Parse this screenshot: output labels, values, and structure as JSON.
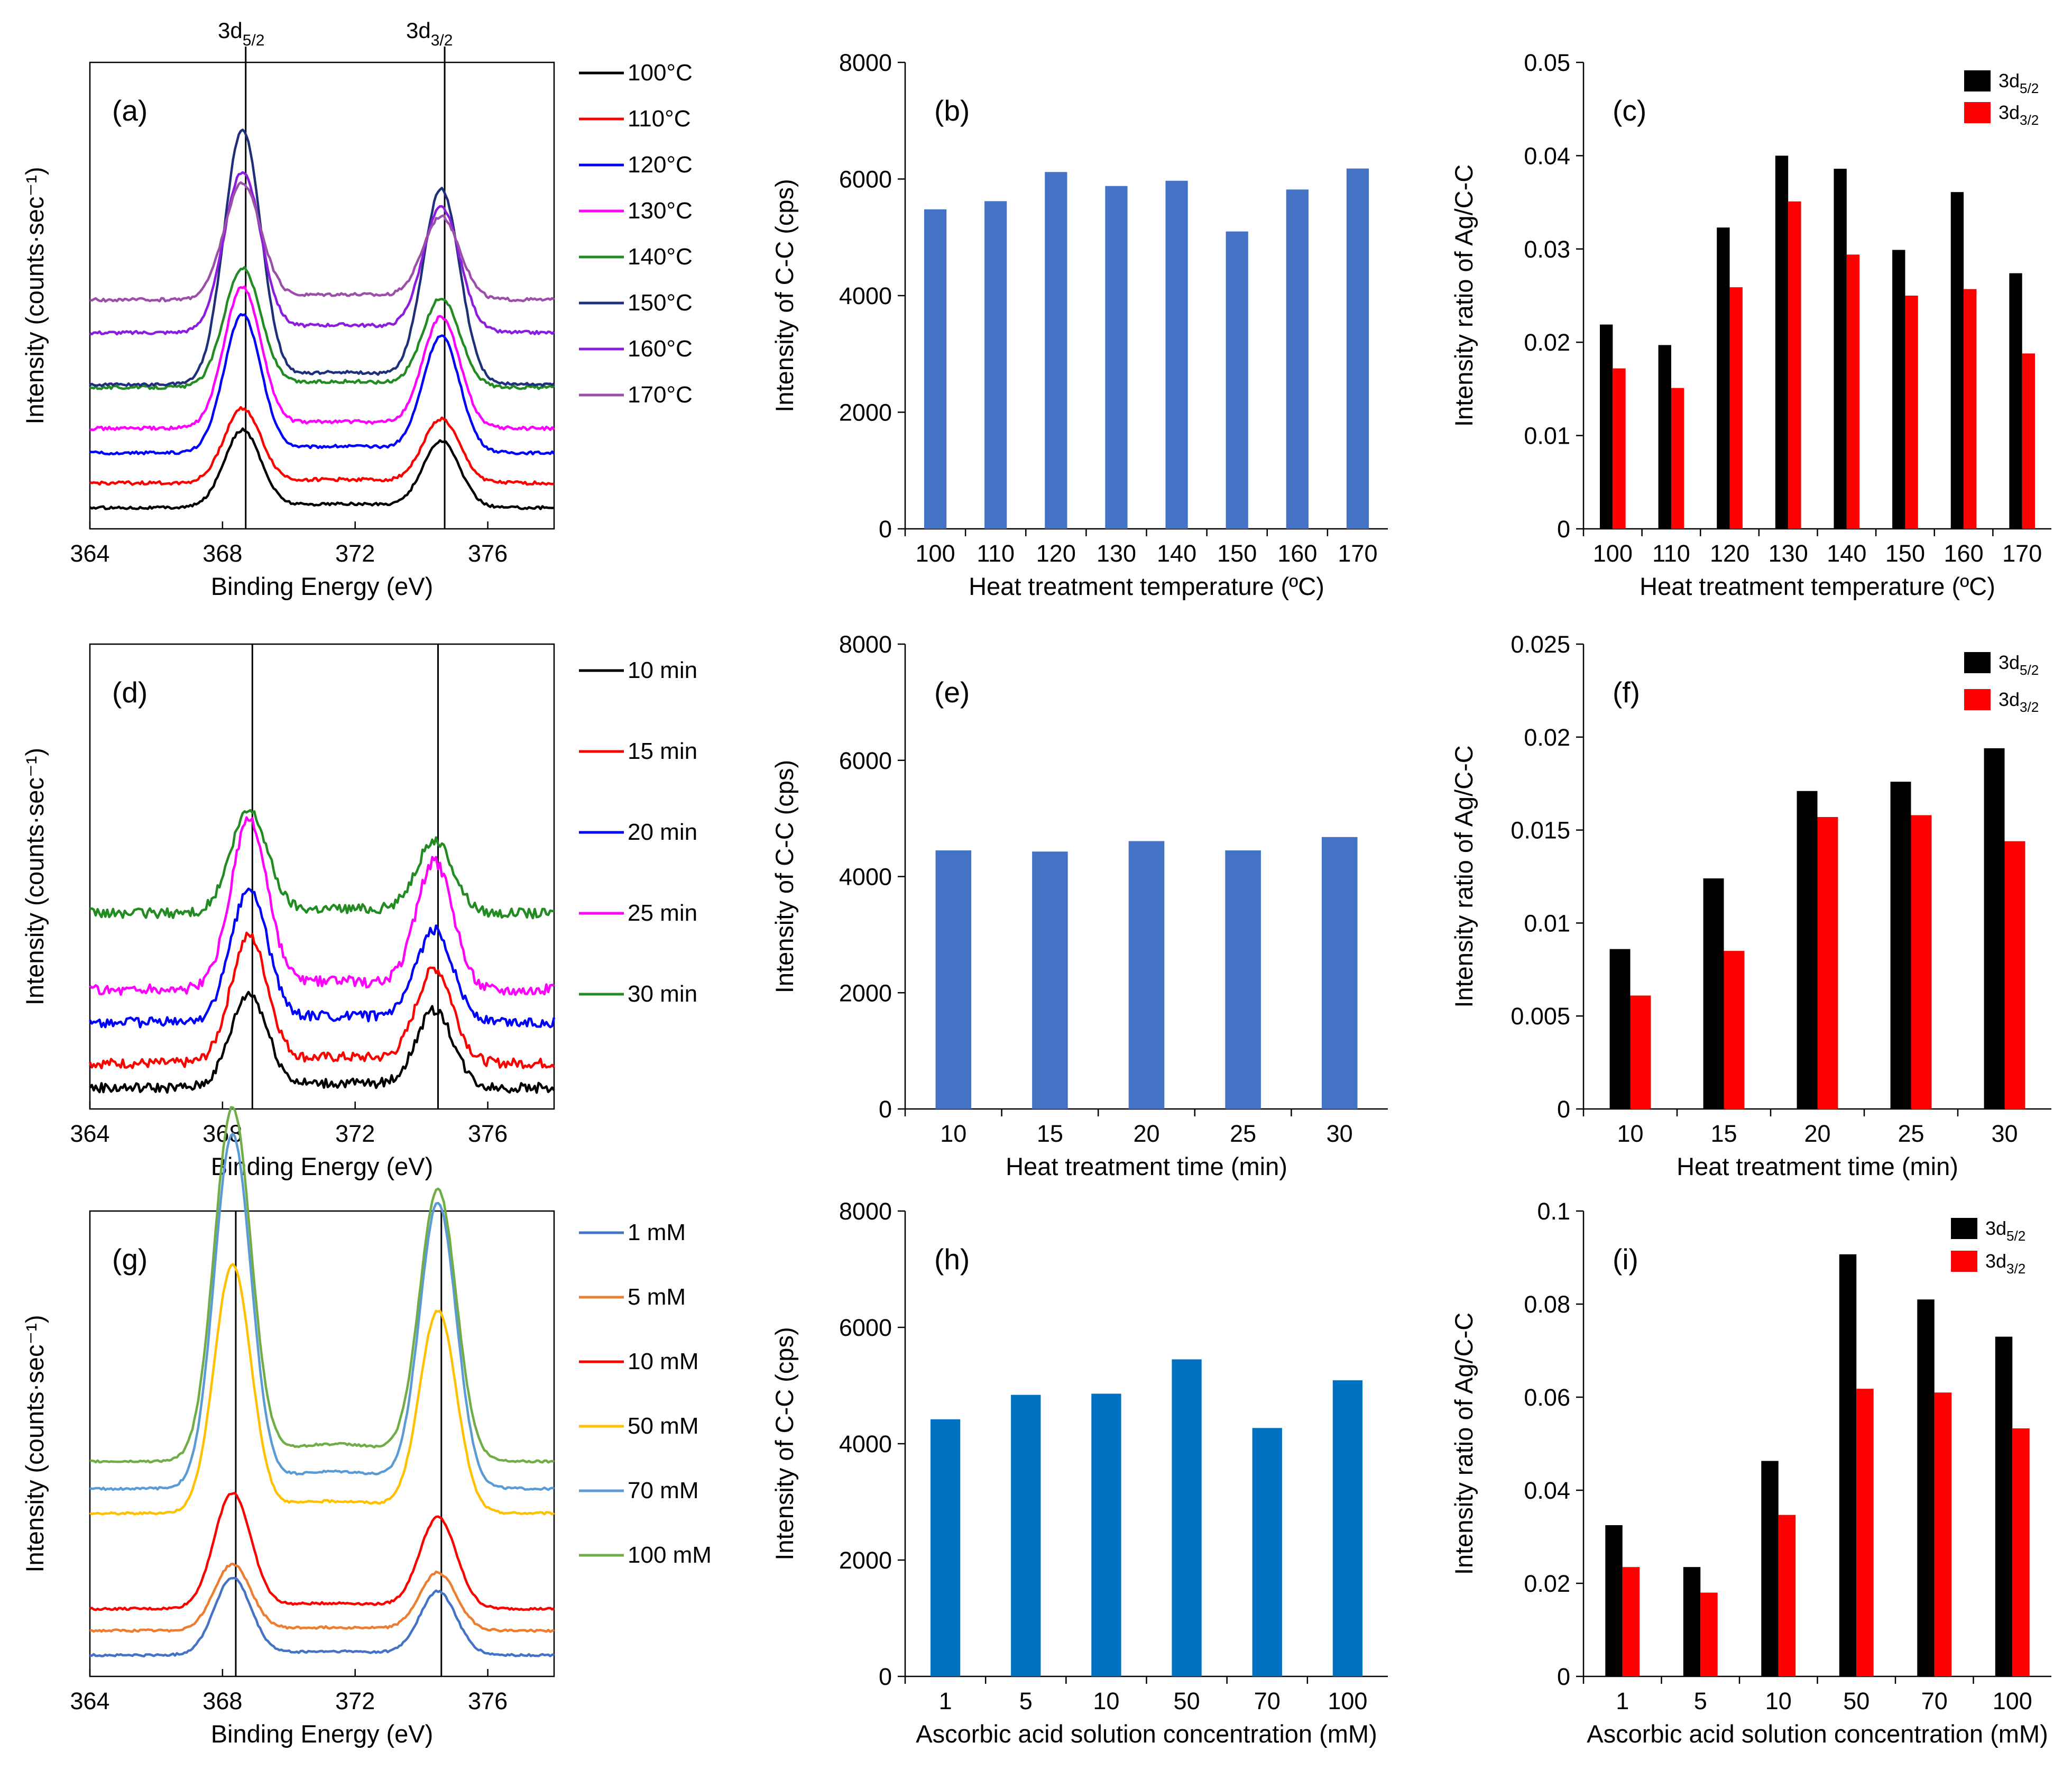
{
  "peak_labels": {
    "p1": "3d5/2",
    "p2": "3d3/2",
    "p1_main": "3d",
    "p1_sub": "5/2",
    "p2_main": "3d",
    "p2_sub": "3/2"
  },
  "chart_data": [
    {
      "id": "a",
      "panel_label": "(a)",
      "type": "line",
      "title": "",
      "xlabel": "Binding Energy (eV)",
      "ylabel": "Intensity (counts·sec⁻¹)",
      "xlim": [
        364,
        378
      ],
      "xticks": [
        364,
        368,
        372,
        376
      ],
      "peak_lines_eV": [
        368.7,
        374.7
      ],
      "legend": [
        "100°C",
        "110°C",
        "120°C",
        "130°C",
        "140°C",
        "150°C",
        "160°C",
        "170°C"
      ],
      "series": [
        {
          "name": "100°C",
          "color": "#000000",
          "offset": 0.0,
          "p1": 0.28,
          "p2": 0.24,
          "noise": 0.005
        },
        {
          "name": "110°C",
          "color": "#ff0000",
          "offset": 0.09,
          "p1": 0.27,
          "p2": 0.23,
          "noise": 0.006
        },
        {
          "name": "120°C",
          "color": "#0000ff",
          "offset": 0.2,
          "p1": 0.5,
          "p2": 0.42,
          "noise": 0.005
        },
        {
          "name": "130°C",
          "color": "#ff00ff",
          "offset": 0.29,
          "p1": 0.51,
          "p2": 0.4,
          "noise": 0.006
        },
        {
          "name": "140°C",
          "color": "#228b22",
          "offset": 0.44,
          "p1": 0.43,
          "p2": 0.32,
          "noise": 0.006
        },
        {
          "name": "150°C",
          "color": "#1f2f7a",
          "offset": 0.45,
          "p1": 0.92,
          "p2": 0.7,
          "noise": 0.005
        },
        {
          "name": "160°C",
          "color": "#8b1ce0",
          "offset": 0.64,
          "p1": 0.58,
          "p2": 0.45,
          "noise": 0.006
        },
        {
          "name": "170°C",
          "color": "#9b4fa8",
          "offset": 0.76,
          "p1": 0.42,
          "p2": 0.3,
          "noise": 0.006
        }
      ]
    },
    {
      "id": "b",
      "panel_label": "(b)",
      "type": "bar",
      "xlabel": "Heat treatment temperature (ºC)",
      "ylabel": "Intensity of C-C (cps)",
      "ylim": [
        0,
        8000
      ],
      "yticks": [
        "0",
        "2000",
        "4000",
        "6000",
        "8000"
      ],
      "categories": [
        "100",
        "110",
        "120",
        "130",
        "140",
        "150",
        "160",
        "170"
      ],
      "series": [
        {
          "name": "C-C",
          "color": "#4472c4",
          "values": [
            5480,
            5620,
            6120,
            5880,
            5970,
            5100,
            5820,
            6180
          ]
        }
      ]
    },
    {
      "id": "c",
      "panel_label": "(c)",
      "type": "bar",
      "xlabel": "Heat treatment temperature (ºC)",
      "ylabel": "Intensity ratio of Ag/C-C",
      "ylim": [
        0,
        0.05
      ],
      "yticks": [
        "0",
        "0.01",
        "0.02",
        "0.03",
        "0.04",
        "0.05"
      ],
      "categories": [
        "100",
        "110",
        "120",
        "130",
        "140",
        "150",
        "160",
        "170"
      ],
      "legend": [
        "3d5/2",
        "3d3/2"
      ],
      "series": [
        {
          "name": "3d5/2",
          "color": "#000000",
          "values": [
            0.0219,
            0.0197,
            0.0323,
            0.04,
            0.0386,
            0.0299,
            0.0361,
            0.0274
          ]
        },
        {
          "name": "3d3/2",
          "color": "#ff0000",
          "values": [
            0.0172,
            0.0151,
            0.0259,
            0.0351,
            0.0294,
            0.025,
            0.0257,
            0.0188
          ]
        }
      ]
    },
    {
      "id": "d",
      "panel_label": "(d)",
      "type": "line",
      "xlabel": "Binding Energy (eV)",
      "ylabel": "Intensity (counts·sec⁻¹)",
      "xlim": [
        364,
        378
      ],
      "xticks": [
        364,
        368,
        372,
        376
      ],
      "peak_lines_eV": [
        368.9,
        374.5
      ],
      "legend": [
        "10 min",
        "15 min",
        "20 min",
        "25 min",
        "30 min"
      ],
      "series": [
        {
          "name": "10 min",
          "color": "#000000",
          "offset": 0.0,
          "p1": 0.34,
          "p2": 0.28,
          "noise": 0.018
        },
        {
          "name": "15 min",
          "color": "#ff0000",
          "offset": 0.09,
          "p1": 0.46,
          "p2": 0.34,
          "noise": 0.018
        },
        {
          "name": "20 min",
          "color": "#0000ff",
          "offset": 0.24,
          "p1": 0.48,
          "p2": 0.33,
          "noise": 0.018
        },
        {
          "name": "25 min",
          "color": "#ff00ff",
          "offset": 0.36,
          "p1": 0.61,
          "p2": 0.46,
          "noise": 0.02
        },
        {
          "name": "30 min",
          "color": "#228b22",
          "offset": 0.64,
          "p1": 0.37,
          "p2": 0.26,
          "noise": 0.018
        }
      ]
    },
    {
      "id": "e",
      "panel_label": "(e)",
      "type": "bar",
      "xlabel": "Heat treatment time (min)",
      "ylabel": "Intensity of C-C (cps)",
      "ylim": [
        0,
        8000
      ],
      "yticks": [
        "0",
        "2000",
        "4000",
        "6000",
        "8000"
      ],
      "categories": [
        "10",
        "15",
        "20",
        "25",
        "30"
      ],
      "series": [
        {
          "name": "C-C",
          "color": "#4472c4",
          "values": [
            4450,
            4430,
            4610,
            4450,
            4680
          ]
        }
      ]
    },
    {
      "id": "f",
      "panel_label": "(f)",
      "type": "bar",
      "xlabel": "Heat treatment time (min)",
      "ylabel": "Intensity ratio of Ag/C-C",
      "ylim": [
        0,
        0.025
      ],
      "yticks": [
        "0",
        "0.005",
        "0.01",
        "0.015",
        "0.02",
        "0.025"
      ],
      "categories": [
        "10",
        "15",
        "20",
        "25",
        "30"
      ],
      "legend": [
        "3d5/2",
        "3d3/2"
      ],
      "series": [
        {
          "name": "3d5/2",
          "color": "#000000",
          "values": [
            0.0086,
            0.0124,
            0.0171,
            0.0176,
            0.0194
          ]
        },
        {
          "name": "3d3/2",
          "color": "#ff0000",
          "values": [
            0.0061,
            0.0085,
            0.0157,
            0.0158,
            0.0144
          ]
        }
      ]
    },
    {
      "id": "g",
      "panel_label": "(g)",
      "type": "line",
      "xlabel": "Binding Energy (eV)",
      "ylabel": "Intensity (counts·sec⁻¹)",
      "xlim": [
        364,
        378
      ],
      "xticks": [
        364,
        368,
        372,
        376
      ],
      "peak_lines_eV": [
        368.4,
        374.6
      ],
      "legend": [
        "1 mM",
        "5 mM",
        "10 mM",
        "50 mM",
        "70 mM",
        "100 mM"
      ],
      "series": [
        {
          "name": "1 mM",
          "color": "#4472c4",
          "offset": 0.0,
          "p1": 0.28,
          "p2": 0.23,
          "noise": 0.004
        },
        {
          "name": "5 mM",
          "color": "#ed7d31",
          "offset": 0.09,
          "p1": 0.24,
          "p2": 0.21,
          "noise": 0.004
        },
        {
          "name": "10 mM",
          "color": "#ff0000",
          "offset": 0.17,
          "p1": 0.42,
          "p2": 0.33,
          "noise": 0.004
        },
        {
          "name": "50 mM",
          "color": "#ffc000",
          "offset": 0.52,
          "p1": 0.9,
          "p2": 0.73,
          "noise": 0.004
        },
        {
          "name": "70 mM",
          "color": "#5b9bd5",
          "offset": 0.61,
          "p1": 1.28,
          "p2": 1.03,
          "noise": 0.004
        },
        {
          "name": "100 mM",
          "color": "#70ad47",
          "offset": 0.71,
          "p1": 1.28,
          "p2": 0.98,
          "noise": 0.004
        }
      ]
    },
    {
      "id": "h",
      "panel_label": "(h)",
      "type": "bar",
      "xlabel": "Ascorbic acid solution concentration (mM)",
      "ylabel": "Intensity of C-C (cps)",
      "ylim": [
        0,
        8000
      ],
      "yticks": [
        "0",
        "2000",
        "4000",
        "6000",
        "8000"
      ],
      "categories": [
        "1",
        "5",
        "10",
        "50",
        "70",
        "100"
      ],
      "series": [
        {
          "name": "C-C",
          "color": "#0070c0",
          "values": [
            4420,
            4840,
            4860,
            5450,
            4270,
            5090
          ]
        }
      ]
    },
    {
      "id": "i",
      "panel_label": "(i)",
      "type": "bar",
      "xlabel": "Ascorbic acid solution concentration (mM)",
      "ylabel": "Intensity ratio of Ag/C-C",
      "ylim": [
        0,
        0.1
      ],
      "yticks": [
        "0",
        "0.02",
        "0.04",
        "0.06",
        "0.08",
        "0.1"
      ],
      "categories": [
        "1",
        "5",
        "10",
        "50",
        "70",
        "100"
      ],
      "legend": [
        "3d5/2",
        "3d3/2"
      ],
      "series": [
        {
          "name": "3d5/2",
          "color": "#000000",
          "values": [
            0.0325,
            0.0235,
            0.0463,
            0.0907,
            0.081,
            0.073
          ]
        },
        {
          "name": "3d3/2",
          "color": "#ff0000",
          "values": [
            0.0235,
            0.018,
            0.0347,
            0.0618,
            0.061,
            0.0533
          ]
        }
      ]
    }
  ]
}
